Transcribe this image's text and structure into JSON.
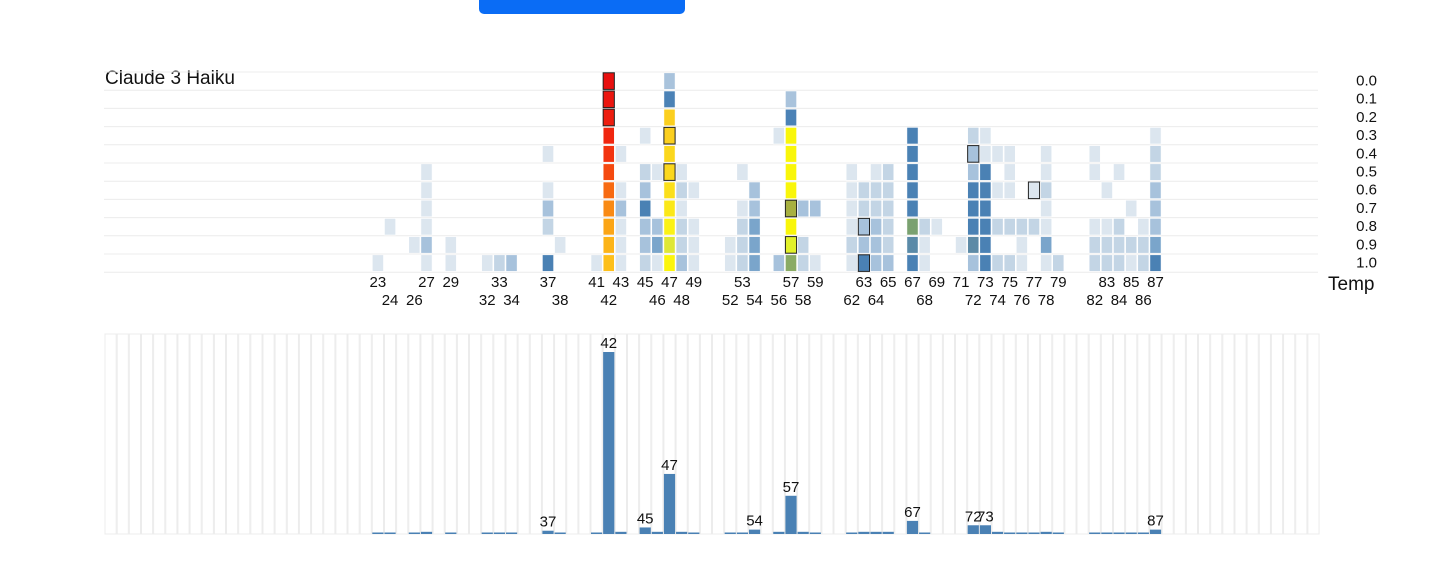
{
  "header": {
    "button_label": ""
  },
  "heatmap": {
    "title": "Claude 3 Haiku",
    "temperature_axis_label": "Temp",
    "temperatures": [
      "0.0",
      "0.1",
      "0.2",
      "0.3",
      "0.4",
      "0.5",
      "0.6",
      "0.7",
      "0.8",
      "0.9",
      "1.0"
    ],
    "x_min": 1,
    "x_max": 100
  },
  "chart_data": [
    {
      "type": "heatmap",
      "title": "Claude 3 Haiku",
      "y_label": "Temp",
      "x_tick_labels": [
        23,
        24,
        26,
        27,
        29,
        32,
        33,
        34,
        37,
        38,
        41,
        42,
        43,
        45,
        46,
        47,
        48,
        49,
        52,
        53,
        54,
        56,
        57,
        58,
        59,
        62,
        63,
        64,
        65,
        67,
        68,
        69,
        71,
        72,
        73,
        74,
        75,
        76,
        77,
        78,
        79,
        82,
        83,
        84,
        85,
        86,
        87
      ],
      "columns": [
        {
          "x": 23,
          "values": {
            "1.0": 0.2
          }
        },
        {
          "x": 24,
          "values": {
            "0.8": 0.2
          }
        },
        {
          "x": 26,
          "values": {
            "0.9": 0.2
          }
        },
        {
          "x": 27,
          "values": {
            "0.5": 0.2,
            "0.6": 0.2,
            "0.7": 0.2,
            "0.8": 0.2,
            "0.9": 0.4,
            "1.0": 0.2
          }
        },
        {
          "x": 29,
          "values": {
            "0.9": 0.2,
            "1.0": 0.2
          }
        },
        {
          "x": 32,
          "values": {
            "1.0": 0.2
          }
        },
        {
          "x": 33,
          "values": {
            "1.0": 0.3
          }
        },
        {
          "x": 34,
          "values": {
            "1.0": 0.45
          }
        },
        {
          "x": 37,
          "values": {
            "0.4": 0.2,
            "0.6": 0.2,
            "0.7": 0.4,
            "0.8": 0.3,
            "1.0": 0.75
          }
        },
        {
          "x": 38,
          "values": {
            "0.9": 0.2
          }
        },
        {
          "x": 41,
          "values": {
            "1.0": 0.2
          }
        },
        {
          "x": 42,
          "values": {
            "0.0": 1.0,
            "0.1": 1.0,
            "0.2": 1.0,
            "0.3": 1.0,
            "0.4": 1.0,
            "0.5": 1.0,
            "0.6": 1.0,
            "0.7": 1.0,
            "0.8": 1.0,
            "0.9": 1.0,
            "1.0": 1.0
          }
        },
        {
          "x": 43,
          "values": {
            "0.4": 0.2,
            "0.6": 0.2,
            "0.7": 0.4,
            "0.8": 0.2,
            "0.9": 0.2,
            "1.0": 0.2
          }
        },
        {
          "x": 45,
          "values": {
            "0.3": 0.2,
            "0.5": 0.3,
            "0.6": 0.4,
            "0.7": 0.75,
            "0.8": 0.4,
            "0.9": 0.4,
            "1.0": 0.3
          }
        },
        {
          "x": 46,
          "values": {
            "0.5": 0.2,
            "0.8": 0.4,
            "0.9": 0.6,
            "1.0": 0.2
          }
        },
        {
          "x": 47,
          "values": {
            "0.0": 0.4,
            "0.1": 0.75,
            "0.2": 1.0,
            "0.3": 1.0,
            "0.4": 1.0,
            "0.5": 1.0,
            "0.6": 1.0,
            "0.7": 1.0,
            "0.8": 1.0,
            "0.9": 1.0,
            "1.0": 1.0
          }
        },
        {
          "x": 48,
          "values": {
            "0.5": 0.2,
            "0.6": 0.3,
            "0.7": 0.2,
            "0.8": 0.3,
            "0.9": 0.3,
            "1.0": 0.4
          }
        },
        {
          "x": 49,
          "values": {
            "0.6": 0.2,
            "0.8": 0.2,
            "0.9": 0.2,
            "1.0": 0.2
          }
        },
        {
          "x": 52,
          "values": {
            "0.9": 0.2,
            "1.0": 0.2
          }
        },
        {
          "x": 53,
          "values": {
            "0.5": 0.2,
            "0.7": 0.2,
            "0.8": 0.3,
            "0.9": 0.3,
            "1.0": 0.3
          }
        },
        {
          "x": 54,
          "values": {
            "0.6": 0.4,
            "0.7": 0.4,
            "0.8": 0.6,
            "0.9": 0.6,
            "1.0": 0.6
          }
        },
        {
          "x": 56,
          "values": {
            "0.3": 0.2,
            "1.0": 0.4
          }
        },
        {
          "x": 57,
          "values": {
            "0.1": 0.4,
            "0.2": 0.75,
            "0.3": 1.0,
            "0.4": 1.0,
            "0.5": 1.0,
            "0.6": 1.0,
            "0.7": 1.0,
            "0.8": 1.0,
            "0.9": 1.0,
            "1.0": 1.0
          }
        },
        {
          "x": 58,
          "values": {
            "0.7": 0.4,
            "0.9": 0.3,
            "1.0": 0.3
          }
        },
        {
          "x": 59,
          "values": {
            "0.7": 0.4,
            "1.0": 0.2
          }
        },
        {
          "x": 62,
          "values": {
            "0.5": 0.2,
            "0.6": 0.2,
            "0.7": 0.2,
            "0.8": 0.2,
            "0.9": 0.3,
            "1.0": 0.2
          }
        },
        {
          "x": 63,
          "values": {
            "0.6": 0.3,
            "0.7": 0.3,
            "0.8": 0.4,
            "0.9": 0.4,
            "1.0": 0.75
          }
        },
        {
          "x": 64,
          "values": {
            "0.5": 0.2,
            "0.6": 0.3,
            "0.7": 0.3,
            "0.8": 0.4,
            "0.9": 0.4,
            "1.0": 0.4
          }
        },
        {
          "x": 65,
          "values": {
            "0.5": 0.3,
            "0.6": 0.3,
            "0.7": 0.3,
            "0.8": 0.3,
            "0.9": 0.3,
            "1.0": 0.4
          }
        },
        {
          "x": 67,
          "values": {
            "0.3": 0.75,
            "0.4": 0.75,
            "0.5": 0.75,
            "0.6": 0.75,
            "0.7": 0.75,
            "0.8": 0.75,
            "0.9": 0.75,
            "1.0": 0.75
          }
        },
        {
          "x": 68,
          "values": {
            "0.8": 0.3,
            "0.9": 0.2,
            "1.0": 0.2
          }
        },
        {
          "x": 69,
          "values": {
            "0.8": 0.2
          }
        },
        {
          "x": 71,
          "values": {
            "0.9": 0.2
          }
        },
        {
          "x": 72,
          "values": {
            "0.3": 0.3,
            "0.4": 0.5,
            "0.5": 0.4,
            "0.6": 0.75,
            "0.7": 0.75,
            "0.8": 0.75,
            "0.9": 0.75,
            "1.0": 0.4
          }
        },
        {
          "x": 73,
          "values": {
            "0.3": 0.2,
            "0.4": 0.2,
            "0.5": 0.75,
            "0.6": 0.75,
            "0.7": 0.75,
            "0.8": 0.75,
            "0.9": 0.75,
            "1.0": 0.75
          }
        },
        {
          "x": 74,
          "values": {
            "0.4": 0.2,
            "0.6": 0.2,
            "0.8": 0.3,
            "1.0": 0.3
          }
        },
        {
          "x": 75,
          "values": {
            "0.4": 0.2,
            "0.5": 0.2,
            "0.6": 0.2,
            "0.8": 0.3,
            "1.0": 0.3
          }
        },
        {
          "x": 76,
          "values": {
            "0.8": 0.3,
            "0.9": 0.2,
            "1.0": 0.2
          }
        },
        {
          "x": 77,
          "values": {
            "0.6": 0.2,
            "0.8": 0.3
          }
        },
        {
          "x": 78,
          "values": {
            "0.4": 0.2,
            "0.5": 0.2,
            "0.6": 0.3,
            "0.7": 0.2,
            "0.8": 0.2,
            "0.9": 0.6,
            "1.0": 0.2
          }
        },
        {
          "x": 79,
          "values": {
            "1.0": 0.3
          }
        },
        {
          "x": 82,
          "values": {
            "0.4": 0.2,
            "0.5": 0.2,
            "0.8": 0.2,
            "0.9": 0.3,
            "1.0": 0.3
          }
        },
        {
          "x": 83,
          "values": {
            "0.6": 0.2,
            "0.8": 0.2,
            "0.9": 0.3,
            "1.0": 0.3
          }
        },
        {
          "x": 84,
          "values": {
            "0.5": 0.2,
            "0.8": 0.3,
            "0.9": 0.3,
            "1.0": 0.3
          }
        },
        {
          "x": 85,
          "values": {
            "0.7": 0.2,
            "0.9": 0.3,
            "1.0": 0.2
          }
        },
        {
          "x": 86,
          "values": {
            "0.8": 0.2,
            "0.9": 0.3,
            "1.0": 0.3
          }
        },
        {
          "x": 87,
          "values": {
            "0.3": 0.2,
            "0.4": 0.3,
            "0.5": 0.3,
            "0.6": 0.4,
            "0.7": 0.4,
            "0.8": 0.4,
            "0.9": 0.6,
            "1.0": 0.75
          }
        }
      ],
      "color_scale": [
        "#dce6ef",
        "#c3d5e5",
        "#a7c2dc",
        "#7aa5cb",
        "#4a81b4"
      ],
      "highlight_colors": {
        "42": [
          "#e8100f",
          "#eb160f",
          "#ed1d0f",
          "#f0260f",
          "#f23410",
          "#f54a10",
          "#f76a12",
          "#f98a14",
          "#fba516",
          "#fcb418",
          "#fdbf1a"
        ],
        "47": [
          "#a9c3dc",
          "#4b82b6",
          "#fbcf1f",
          "#fbcf1f",
          "#fbd71d",
          "#fbd71d",
          "#fbdf1b",
          "#fbe818",
          "#fbf215",
          "#dfe736",
          "#fbf50c"
        ],
        "57": [
          null,
          "#a9c3dc",
          "#4b82b6",
          "#f9f60a",
          "#f9f60a",
          "#f9f60a",
          "#f9f60a",
          "#a7b040",
          "#f9f60a",
          "#e2f12a",
          "#8aab64"
        ],
        "67_0.8": "#7aa170",
        "67_0.9": "#5a8aa8",
        "72_0.9": "#5d8aa6"
      },
      "outlined_cells": [
        {
          "x": 42,
          "temp": "0.0"
        },
        {
          "x": 42,
          "temp": "0.1"
        },
        {
          "x": 42,
          "temp": "0.2"
        },
        {
          "x": 47,
          "temp": "0.3"
        },
        {
          "x": 47,
          "temp": "0.5"
        },
        {
          "x": 57,
          "temp": "0.7"
        },
        {
          "x": 57,
          "temp": "0.9"
        },
        {
          "x": 63,
          "temp": "0.8"
        },
        {
          "x": 63,
          "temp": "1.0"
        },
        {
          "x": 72,
          "temp": "0.4"
        },
        {
          "x": 77,
          "temp": "0.6"
        }
      ]
    },
    {
      "type": "bar",
      "x_min": 1,
      "x_max": 100,
      "ymax": 100,
      "values": [
        {
          "x": 23,
          "y": 0.6
        },
        {
          "x": 24,
          "y": 0.6
        },
        {
          "x": 26,
          "y": 0.6
        },
        {
          "x": 27,
          "y": 1.2
        },
        {
          "x": 29,
          "y": 0.6
        },
        {
          "x": 32,
          "y": 0.6
        },
        {
          "x": 33,
          "y": 0.6
        },
        {
          "x": 34,
          "y": 0.6
        },
        {
          "x": 37,
          "y": 1.8,
          "label": "37"
        },
        {
          "x": 38,
          "y": 0.6
        },
        {
          "x": 41,
          "y": 0.6
        },
        {
          "x": 42,
          "y": 100,
          "label": "42"
        },
        {
          "x": 43,
          "y": 1.2
        },
        {
          "x": 45,
          "y": 3.6,
          "label": "45"
        },
        {
          "x": 46,
          "y": 1.2
        },
        {
          "x": 47,
          "y": 33,
          "label": "47"
        },
        {
          "x": 48,
          "y": 1.2
        },
        {
          "x": 49,
          "y": 0.6
        },
        {
          "x": 52,
          "y": 0.6
        },
        {
          "x": 53,
          "y": 0.6
        },
        {
          "x": 54,
          "y": 2.4,
          "label": "54"
        },
        {
          "x": 56,
          "y": 1.2
        },
        {
          "x": 57,
          "y": 21,
          "label": "57"
        },
        {
          "x": 58,
          "y": 1.2
        },
        {
          "x": 59,
          "y": 0.6
        },
        {
          "x": 62,
          "y": 0.6
        },
        {
          "x": 63,
          "y": 1.2
        },
        {
          "x": 64,
          "y": 1.2
        },
        {
          "x": 65,
          "y": 1.2
        },
        {
          "x": 67,
          "y": 7.2,
          "label": "67"
        },
        {
          "x": 68,
          "y": 0.6
        },
        {
          "x": 72,
          "y": 4.8,
          "label": "72"
        },
        {
          "x": 73,
          "y": 4.8,
          "label": "73"
        },
        {
          "x": 74,
          "y": 1.2
        },
        {
          "x": 75,
          "y": 0.6
        },
        {
          "x": 76,
          "y": 0.6
        },
        {
          "x": 77,
          "y": 0.6
        },
        {
          "x": 78,
          "y": 1.2
        },
        {
          "x": 79,
          "y": 0.6
        },
        {
          "x": 82,
          "y": 0.6
        },
        {
          "x": 83,
          "y": 0.6
        },
        {
          "x": 84,
          "y": 0.6
        },
        {
          "x": 85,
          "y": 0.6
        },
        {
          "x": 86,
          "y": 0.6
        },
        {
          "x": 87,
          "y": 2.4,
          "label": "87"
        }
      ],
      "bar_color": "#4a81b4",
      "slot_color": "#ececec"
    }
  ]
}
